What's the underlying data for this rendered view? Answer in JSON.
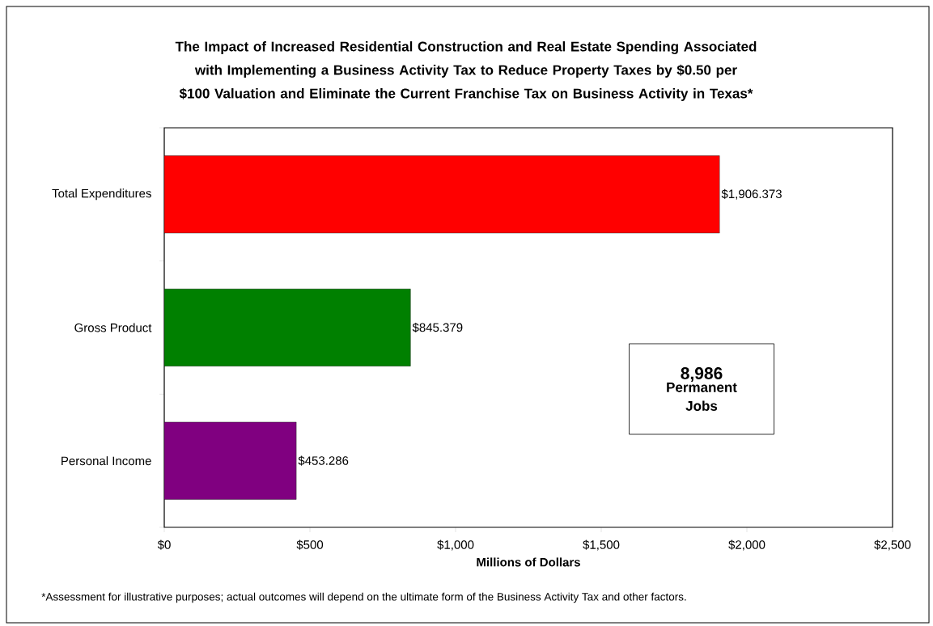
{
  "chart_data": {
    "type": "bar",
    "orientation": "horizontal",
    "title": "The Impact of Increased Residential Construction and Real Estate Spending Associated with Implementing a Business Activity Tax to Reduce Property Taxes by $0.50 per $100 Valuation and Eliminate the Current Franchise Tax on Business Activity in Texas*",
    "xlabel": "Millions of Dollars",
    "categories": [
      "Total Expenditures",
      "Gross Product",
      "Personal Income"
    ],
    "values": [
      1906.373,
      845.379,
      453.286
    ],
    "colors": [
      "#ff0000",
      "#008000",
      "#800080"
    ],
    "value_labels": [
      "$1,906.373",
      "$845.379",
      "$453.286"
    ],
    "xlim": [
      0,
      2500
    ],
    "xticks": [
      {
        "value": 0,
        "label": "$0"
      },
      {
        "value": 500,
        "label": "$500"
      },
      {
        "value": 1000,
        "label": "$1,000"
      },
      {
        "value": 1500,
        "label": "$1,500"
      },
      {
        "value": 2000,
        "label": "$2,000"
      },
      {
        "value": 2500,
        "label": "$2,500"
      }
    ],
    "grid": false,
    "annotations": [
      "8,986",
      "Permanent Jobs",
      "*Assessment for illustrative purposes; actual outcomes will depend on the ultimate form of the Business Activity Tax and other factors."
    ]
  }
}
